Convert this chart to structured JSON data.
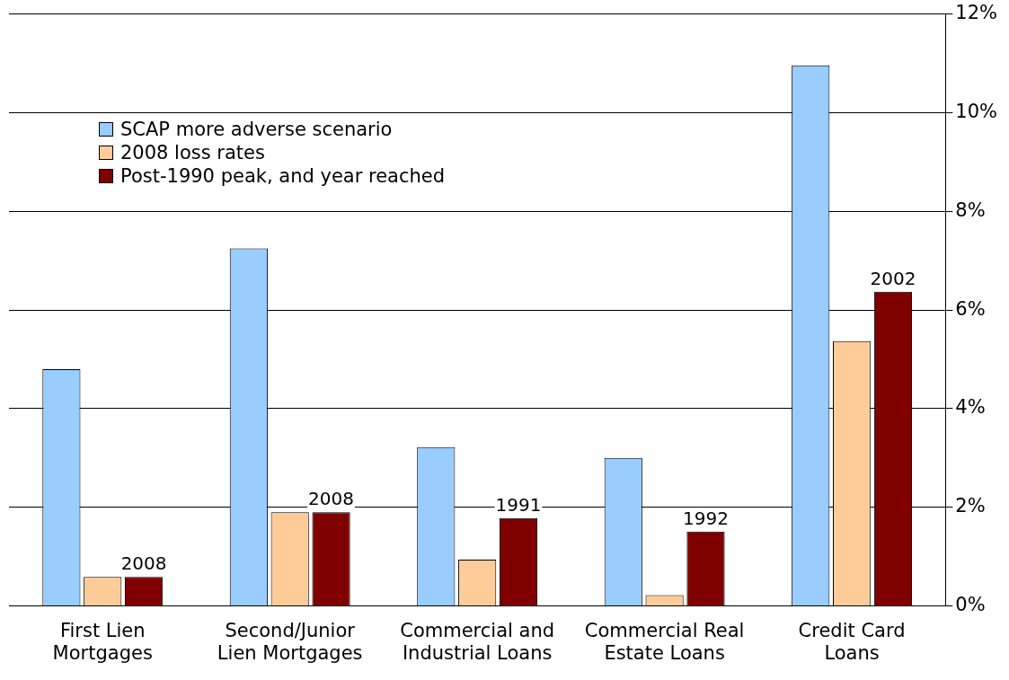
{
  "chart_data": {
    "type": "bar",
    "categories": [
      "First Lien Mortgages",
      "Second/Junior Lien Mortgages",
      "Commercial and Industrial Loans",
      "Commercial Real Estate Loans",
      "Credit Card Loans"
    ],
    "series": [
      {
        "name": "SCAP more adverse scenario",
        "color": "#99ccff",
        "values": [
          4.8,
          7.25,
          3.22,
          3.0,
          10.96
        ]
      },
      {
        "name": "2008 loss rates",
        "color": "#ffcc99",
        "values": [
          0.59,
          1.9,
          0.94,
          0.22,
          5.37
        ]
      },
      {
        "name": "Post-1990 peak, and year reached",
        "color": "#800000",
        "values": [
          0.59,
          1.9,
          1.78,
          1.51,
          6.37
        ]
      }
    ],
    "annotations": [
      "2008",
      "2008",
      "1991",
      "1992",
      "2002"
    ],
    "ylim": [
      0,
      12
    ],
    "yticks": [
      {
        "value": 0,
        "label": "0%"
      },
      {
        "value": 2,
        "label": "2%"
      },
      {
        "value": 4,
        "label": "4%"
      },
      {
        "value": 6,
        "label": "6%"
      },
      {
        "value": 8,
        "label": "8%"
      },
      {
        "value": 10,
        "label": "10%"
      },
      {
        "value": 12,
        "label": "12%"
      }
    ],
    "grid": "y",
    "legend": "top left"
  }
}
